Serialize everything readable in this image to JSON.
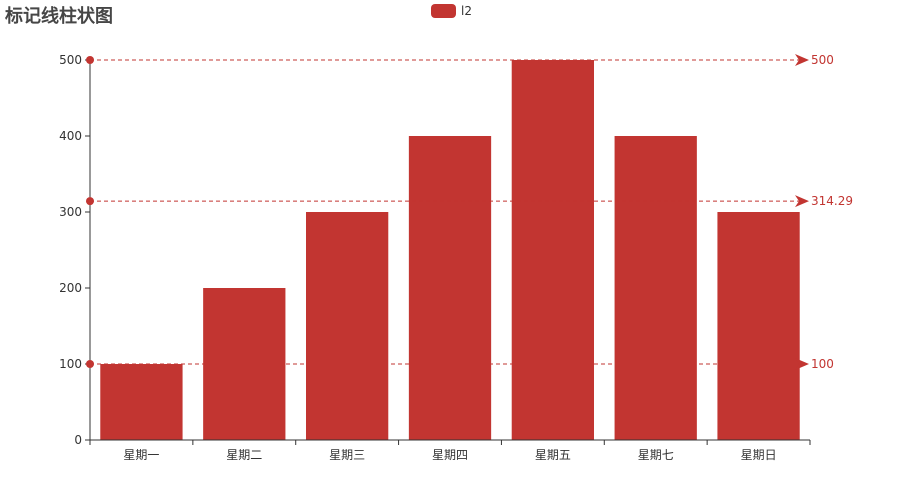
{
  "title": "标记线柱状图",
  "colors": {
    "series": "#c23531",
    "axis": "#333333",
    "text": "#333333",
    "title": "#464646"
  },
  "chart_data": {
    "type": "bar",
    "title": "标记线柱状图",
    "xlabel": "",
    "ylabel": "",
    "categories": [
      "星期一",
      "星期二",
      "星期三",
      "星期四",
      "星期五",
      "星期七",
      "星期日"
    ],
    "series": [
      {
        "name": "l2",
        "values": [
          100,
          200,
          300,
          400,
          500,
          400,
          300
        ]
      }
    ],
    "ylim": [
      0,
      500
    ],
    "yticks": [
      0,
      100,
      200,
      300,
      400,
      500
    ],
    "grid": false,
    "legend_position": "top-center",
    "mark_lines": [
      {
        "type": "max",
        "value": 500,
        "label": "500"
      },
      {
        "type": "average",
        "value": 314.29,
        "label": "314.29"
      },
      {
        "type": "min",
        "value": 100,
        "label": "100"
      }
    ]
  }
}
